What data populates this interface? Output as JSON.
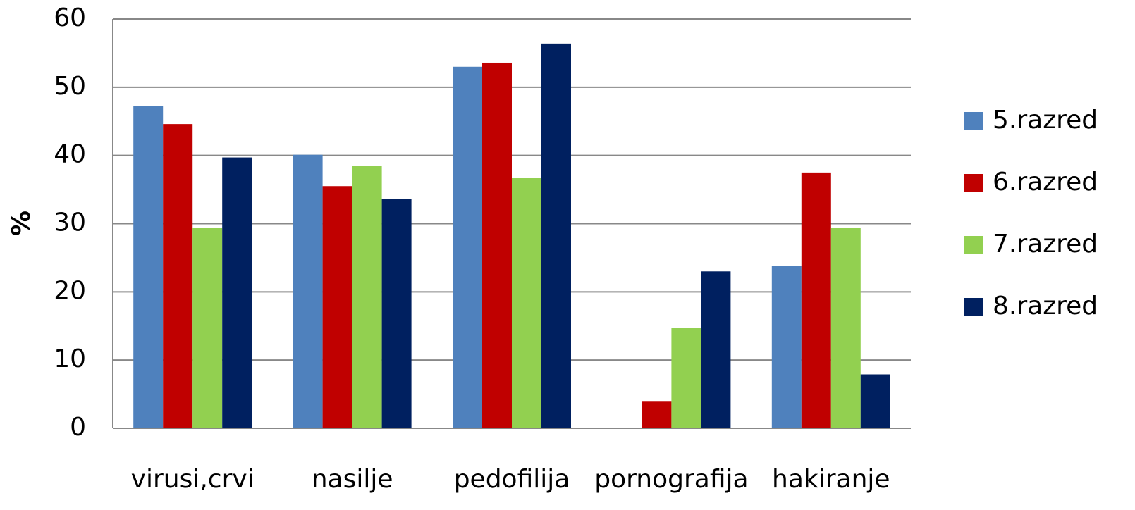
{
  "chart_data": {
    "type": "bar",
    "ylabel": "%",
    "categories": [
      "virusi,crvi",
      "nasilje",
      "pedofilija",
      "pornografija",
      "hakiranje"
    ],
    "series": [
      {
        "name": "5.razred",
        "color": "#4f81bd",
        "values": [
          47.2,
          40.1,
          53.0,
          0,
          23.8
        ]
      },
      {
        "name": "6.razred",
        "color": "#c00000",
        "values": [
          44.6,
          35.5,
          53.6,
          4.0,
          37.5
        ]
      },
      {
        "name": "7.razred",
        "color": "#92d050",
        "values": [
          29.4,
          38.5,
          36.7,
          14.7,
          29.4
        ]
      },
      {
        "name": "8.razred",
        "color": "#002060",
        "values": [
          39.7,
          33.6,
          56.4,
          23.0,
          7.9
        ]
      }
    ],
    "ylim": [
      0,
      60
    ],
    "yticks": [
      0,
      10,
      20,
      30,
      40,
      50,
      60
    ],
    "grid": true,
    "legend": "right"
  }
}
